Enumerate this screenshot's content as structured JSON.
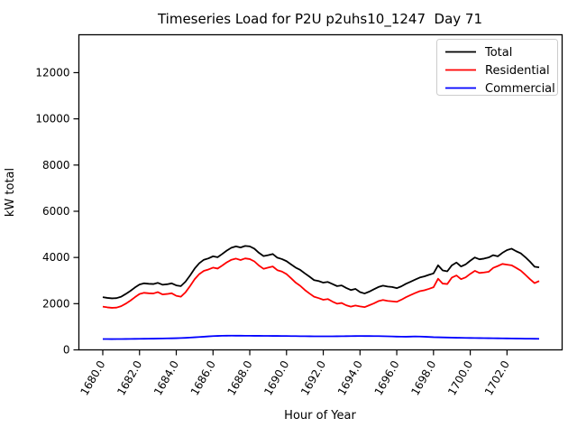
{
  "title": "Timeseries Load for P2U p2uhs10_1247  Day 71",
  "chart_data": {
    "type": "line",
    "title": "Timeseries Load for P2U p2uhs10_1247  Day 71",
    "xlabel": "Hour of Year",
    "ylabel": "kW total",
    "grid": false,
    "legend_position": "upper right",
    "xlim": [
      1678.7,
      1705.0
    ],
    "ylim": [
      0,
      13640
    ],
    "x_ticks": [
      1680.0,
      1682.0,
      1684.0,
      1686.0,
      1688.0,
      1690.0,
      1692.0,
      1694.0,
      1696.0,
      1698.0,
      1700.0,
      1702.0
    ],
    "x_tick_labels": [
      "1680.0",
      "1682.0",
      "1684.0",
      "1686.0",
      "1688.0",
      "1690.0",
      "1692.0",
      "1694.0",
      "1696.0",
      "1698.0",
      "1700.0",
      "1702.0"
    ],
    "y_ticks": [
      0,
      2000,
      4000,
      6000,
      8000,
      10000,
      12000
    ],
    "y_tick_labels": [
      "0",
      "2000",
      "4000",
      "6000",
      "8000",
      "10000",
      "12000"
    ],
    "x": [
      1680,
      1680.25,
      1680.5,
      1680.75,
      1681,
      1681.25,
      1681.5,
      1681.75,
      1682,
      1682.25,
      1682.5,
      1682.75,
      1683,
      1683.25,
      1683.5,
      1683.75,
      1684,
      1684.25,
      1684.5,
      1684.75,
      1685,
      1685.25,
      1685.5,
      1685.75,
      1686,
      1686.25,
      1686.5,
      1686.75,
      1687,
      1687.25,
      1687.5,
      1687.75,
      1688,
      1688.25,
      1688.5,
      1688.75,
      1689,
      1689.25,
      1689.5,
      1689.75,
      1690,
      1690.25,
      1690.5,
      1690.75,
      1691,
      1691.25,
      1691.5,
      1691.75,
      1692,
      1692.25,
      1692.5,
      1692.75,
      1693,
      1693.25,
      1693.5,
      1693.75,
      1694,
      1694.25,
      1694.5,
      1694.75,
      1695,
      1695.25,
      1695.5,
      1695.75,
      1696,
      1696.25,
      1696.5,
      1696.75,
      1697,
      1697.25,
      1697.5,
      1697.75,
      1698,
      1698.25,
      1698.5,
      1698.75,
      1699,
      1699.25,
      1699.5,
      1699.75,
      1700,
      1700.25,
      1700.5,
      1700.75,
      1701,
      1701.25,
      1701.5,
      1701.75,
      1702,
      1702.25,
      1702.5,
      1702.75,
      1703,
      1703.25,
      1703.5,
      1703.75
    ],
    "series": [
      {
        "name": "Total",
        "color": "#000000",
        "values": [
          2280,
          2250,
          2230,
          2240,
          2300,
          2420,
          2550,
          2700,
          2830,
          2880,
          2860,
          2850,
          2900,
          2820,
          2840,
          2880,
          2790,
          2760,
          2950,
          3220,
          3520,
          3750,
          3900,
          3960,
          4050,
          4010,
          4150,
          4300,
          4420,
          4480,
          4430,
          4500,
          4480,
          4380,
          4200,
          4060,
          4100,
          4150,
          3990,
          3930,
          3840,
          3700,
          3560,
          3460,
          3310,
          3170,
          3020,
          2980,
          2910,
          2940,
          2850,
          2760,
          2790,
          2680,
          2590,
          2640,
          2500,
          2440,
          2520,
          2620,
          2720,
          2780,
          2740,
          2720,
          2670,
          2750,
          2860,
          2950,
          3040,
          3130,
          3180,
          3250,
          3310,
          3660,
          3440,
          3400,
          3660,
          3780,
          3610,
          3700,
          3860,
          4000,
          3920,
          3950,
          4000,
          4100,
          4050,
          4200,
          4320,
          4380,
          4270,
          4180,
          4010,
          3820,
          3600,
          3570
        ]
      },
      {
        "name": "Residential",
        "color": "#ff0000",
        "values": [
          1870,
          1840,
          1820,
          1830,
          1890,
          2000,
          2130,
          2280,
          2420,
          2470,
          2450,
          2440,
          2500,
          2400,
          2420,
          2450,
          2340,
          2300,
          2490,
          2760,
          3060,
          3280,
          3420,
          3480,
          3560,
          3520,
          3650,
          3790,
          3900,
          3950,
          3890,
          3960,
          3930,
          3830,
          3650,
          3510,
          3560,
          3610,
          3450,
          3390,
          3280,
          3100,
          2910,
          2770,
          2590,
          2440,
          2300,
          2240,
          2170,
          2200,
          2090,
          2000,
          2030,
          1930,
          1870,
          1920,
          1880,
          1850,
          1930,
          2010,
          2110,
          2160,
          2120,
          2100,
          2080,
          2170,
          2280,
          2370,
          2460,
          2540,
          2580,
          2640,
          2710,
          3080,
          2870,
          2850,
          3130,
          3220,
          3060,
          3140,
          3290,
          3420,
          3330,
          3350,
          3380,
          3550,
          3630,
          3720,
          3690,
          3660,
          3550,
          3430,
          3250,
          3060,
          2890,
          2980
        ]
      },
      {
        "name": "Commercial",
        "color": "#0000ff",
        "values": [
          470,
          468,
          467,
          468,
          470,
          472,
          474,
          477,
          480,
          482,
          485,
          487,
          490,
          493,
          497,
          501,
          505,
          512,
          520,
          532,
          545,
          558,
          570,
          583,
          595,
          603,
          610,
          613,
          615,
          614,
          613,
          611,
          610,
          609,
          608,
          606,
          605,
          604,
          603,
          601,
          600,
          597,
          595,
          592,
          590,
          589,
          587,
          586,
          585,
          586,
          587,
          588,
          590,
          593,
          595,
          598,
          600,
          599,
          598,
          596,
          595,
          590,
          585,
          580,
          575,
          572,
          570,
          575,
          580,
          576,
          570,
          560,
          550,
          545,
          540,
          535,
          530,
          526,
          522,
          518,
          515,
          512,
          510,
          507,
          505,
          502,
          500,
          497,
          495,
          492,
          490,
          488,
          485,
          483,
          481,
          480
        ]
      }
    ]
  }
}
